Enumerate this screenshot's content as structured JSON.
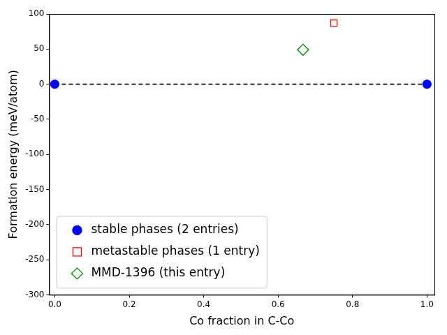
{
  "chart_data": {
    "type": "scatter",
    "x_label": "Co fraction in C-Co",
    "y_label": "Formation energy (meV/atom)",
    "xlim": [
      -0.015,
      1.02
    ],
    "ylim": [
      -300,
      100
    ],
    "xticks": [
      {
        "value": 0,
        "label": "0.0"
      },
      {
        "value": 0.2,
        "label": "0.2"
      },
      {
        "value": 0.4,
        "label": "0.4"
      },
      {
        "value": 0.6,
        "label": "0.6"
      },
      {
        "value": 0.8,
        "label": "0.8"
      },
      {
        "value": 1,
        "label": "1.0"
      }
    ],
    "yticks": [
      -300,
      -250,
      -200,
      -150,
      -100,
      -50,
      0,
      50,
      100
    ],
    "grid": false,
    "legend": "lower left",
    "series": [
      {
        "type": "line",
        "color": "#000000",
        "line_style": "dashed",
        "x": [
          0,
          1
        ],
        "values": [
          0,
          0
        ]
      },
      {
        "name": "stable phases (2 entries)",
        "type": "scatter",
        "color": "#0000ff",
        "marker": "circle",
        "x": [
          0,
          1
        ],
        "values": [
          0,
          0
        ]
      },
      {
        "name": "metastable phases (1 entry)",
        "type": "scatter",
        "color": "#ff0000",
        "marker": "open_square",
        "x": [
          0.75
        ],
        "values": [
          87
        ]
      },
      {
        "name": "MMD-1396 (this entry)",
        "type": "scatter",
        "color": "#008000",
        "marker": "open_diamond",
        "x": [
          0.667
        ],
        "values": [
          49
        ]
      }
    ]
  }
}
